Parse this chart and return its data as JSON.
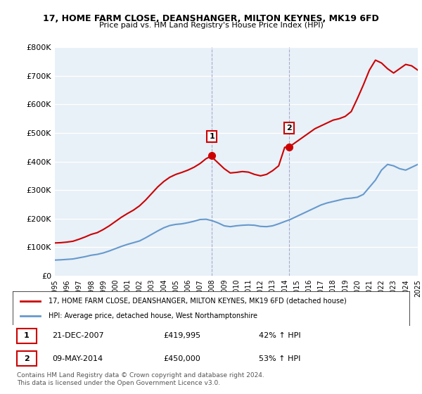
{
  "title": "17, HOME FARM CLOSE, DEANSHANGER, MILTON KEYNES, MK19 6FD",
  "subtitle": "Price paid vs. HM Land Registry's House Price Index (HPI)",
  "ylabel": "",
  "xlabel": "",
  "ylim": [
    0,
    800000
  ],
  "yticks": [
    0,
    100000,
    200000,
    300000,
    400000,
    500000,
    600000,
    700000,
    800000
  ],
  "ytick_labels": [
    "£0",
    "£100K",
    "£200K",
    "£300K",
    "£400K",
    "£500K",
    "£600K",
    "£700K",
    "£800K"
  ],
  "background_color": "#ffffff",
  "plot_bg_color": "#e8f0f8",
  "grid_color": "#ffffff",
  "red_line_color": "#cc0000",
  "blue_line_color": "#6699cc",
  "marker1_x": 2007.97,
  "marker1_y": 419995,
  "marker2_x": 2014.36,
  "marker2_y": 450000,
  "marker1_label": "1",
  "marker2_label": "2",
  "marker1_date": "21-DEC-2007",
  "marker1_price": "£419,995",
  "marker1_hpi": "42% ↑ HPI",
  "marker2_date": "09-MAY-2014",
  "marker2_price": "£450,000",
  "marker2_hpi": "53% ↑ HPI",
  "legend_line1": "17, HOME FARM CLOSE, DEANSHANGER, MILTON KEYNES, MK19 6FD (detached house)",
  "legend_line2": "HPI: Average price, detached house, West Northamptonshire",
  "footer": "Contains HM Land Registry data © Crown copyright and database right 2024.\nThis data is licensed under the Open Government Licence v3.0.",
  "hpi_years": [
    1995,
    1995.5,
    1996,
    1996.5,
    1997,
    1997.5,
    1998,
    1998.5,
    1999,
    1999.5,
    2000,
    2000.5,
    2001,
    2001.5,
    2002,
    2002.5,
    2003,
    2003.5,
    2004,
    2004.5,
    2005,
    2005.5,
    2006,
    2006.5,
    2007,
    2007.5,
    2008,
    2008.5,
    2009,
    2009.5,
    2010,
    2010.5,
    2011,
    2011.5,
    2012,
    2012.5,
    2013,
    2013.5,
    2014,
    2014.5,
    2015,
    2015.5,
    2016,
    2016.5,
    2017,
    2017.5,
    2018,
    2018.5,
    2019,
    2019.5,
    2020,
    2020.5,
    2021,
    2021.5,
    2022,
    2022.5,
    2023,
    2023.5,
    2024,
    2024.5,
    2025
  ],
  "hpi_values": [
    55000,
    56000,
    57500,
    59000,
    63000,
    67000,
    72000,
    75000,
    80000,
    87000,
    95000,
    103000,
    110000,
    116000,
    122000,
    133000,
    145000,
    157000,
    168000,
    176000,
    180000,
    182000,
    186000,
    191000,
    197000,
    198000,
    193000,
    185000,
    175000,
    172000,
    175000,
    177000,
    178000,
    177000,
    173000,
    172000,
    175000,
    182000,
    190000,
    198000,
    208000,
    218000,
    228000,
    238000,
    248000,
    255000,
    260000,
    265000,
    270000,
    272000,
    275000,
    285000,
    310000,
    335000,
    370000,
    390000,
    385000,
    375000,
    370000,
    380000,
    390000
  ],
  "red_years": [
    1995,
    1995.5,
    1996,
    1996.5,
    1997,
    1997.5,
    1998,
    1998.5,
    1999,
    1999.5,
    2000,
    2000.5,
    2001,
    2001.5,
    2002,
    2002.5,
    2003,
    2003.5,
    2004,
    2004.5,
    2005,
    2005.5,
    2006,
    2006.5,
    2007,
    2007.5,
    2007.97,
    2008,
    2008.5,
    2009,
    2009.5,
    2010,
    2010.5,
    2011,
    2011.5,
    2012,
    2012.5,
    2013,
    2013.5,
    2014,
    2014.36,
    2014.5,
    2015,
    2015.5,
    2016,
    2016.5,
    2017,
    2017.5,
    2018,
    2018.5,
    2019,
    2019.5,
    2020,
    2020.5,
    2021,
    2021.5,
    2022,
    2022.5,
    2023,
    2023.5,
    2024,
    2024.5,
    2025
  ],
  "red_values": [
    115000,
    116000,
    118000,
    121000,
    128000,
    136000,
    145000,
    151000,
    162000,
    175000,
    190000,
    205000,
    218000,
    230000,
    245000,
    265000,
    288000,
    311000,
    330000,
    345000,
    355000,
    362000,
    370000,
    380000,
    393000,
    410000,
    419995,
    415000,
    395000,
    375000,
    360000,
    362000,
    365000,
    363000,
    355000,
    350000,
    355000,
    368000,
    385000,
    450000,
    450000,
    455000,
    470000,
    485000,
    500000,
    515000,
    525000,
    535000,
    545000,
    550000,
    558000,
    575000,
    620000,
    668000,
    720000,
    755000,
    745000,
    725000,
    710000,
    725000,
    740000,
    735000,
    720000
  ],
  "xmin": 1995,
  "xmax": 2025
}
